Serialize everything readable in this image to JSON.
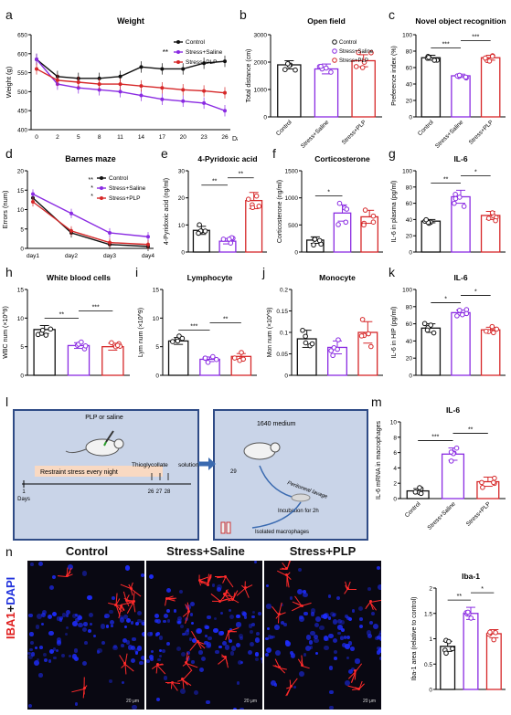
{
  "figure": {
    "panel_labels": [
      "a",
      "b",
      "c",
      "d",
      "e",
      "f",
      "g",
      "h",
      "i",
      "j",
      "k",
      "l",
      "m",
      "n"
    ]
  },
  "schematic": {
    "plp_label": "PLP or saline",
    "stress_label": "Restraint stress every night",
    "thio_label": "Thioglycollate",
    "solution_label": "solution",
    "days": [
      "1",
      "26",
      "27",
      "28"
    ],
    "days_label": "Days",
    "medium_label": "1640 medium",
    "day29": "29",
    "lavage": "Peritoneal lavage",
    "incubation": "Incubation for 2h",
    "isolated": "Isolated macrophages"
  },
  "images": {
    "titles": [
      "Control",
      "Stress+Saline",
      "Stress+PLP"
    ],
    "side_label_1": "IBA1",
    "side_label_2": "+",
    "side_label_3": "DAPI",
    "scalebar": "20 μm"
  },
  "chart_data": [
    {
      "id": "a",
      "type": "line",
      "title": "Weight",
      "xlabel": "Days",
      "ylabel": "Weight (g)",
      "x": [
        0,
        2,
        5,
        8,
        11,
        14,
        17,
        20,
        23,
        26
      ],
      "ylim": [
        400,
        650
      ],
      "yticks": [
        400,
        450,
        500,
        550,
        600,
        650
      ],
      "series": [
        {
          "name": "Control",
          "color": "#111111",
          "values": [
            585,
            540,
            535,
            535,
            540,
            565,
            560,
            560,
            575,
            580
          ]
        },
        {
          "name": "Stress+Saline",
          "color": "#8a2be2",
          "values": [
            585,
            520,
            510,
            505,
            500,
            490,
            480,
            475,
            470,
            450
          ]
        },
        {
          "name": "Stress+PLP",
          "color": "#d62728",
          "values": [
            560,
            530,
            525,
            520,
            520,
            515,
            510,
            505,
            502,
            497
          ]
        }
      ],
      "annotation": "**"
    },
    {
      "id": "b",
      "type": "bar",
      "title": "Open field",
      "ylabel": "Total distance (cm)",
      "categories": [
        "Control",
        "Stress+Saline",
        "Stress+PLP"
      ],
      "values": [
        1900,
        1750,
        2050
      ],
      "errors": [
        150,
        180,
        220
      ],
      "ylim": [
        0,
        3000
      ],
      "yticks": [
        0,
        1000,
        2000,
        3000
      ],
      "colors": [
        "#111111",
        "#8a2be2",
        "#d62728"
      ],
      "legend": [
        "Control",
        "Stress+Saline",
        "Stress+PLP"
      ]
    },
    {
      "id": "c",
      "type": "bar",
      "title": "Novel object recognition",
      "ylabel": "Preference index (%)",
      "categories": [
        "Control",
        "Stress+Saline",
        "Stress+PLP"
      ],
      "values": [
        72,
        50,
        72
      ],
      "errors": [
        3,
        2,
        3
      ],
      "ylim": [
        0,
        100
      ],
      "yticks": [
        0,
        20,
        40,
        60,
        80,
        100
      ],
      "colors": [
        "#111111",
        "#8a2be2",
        "#d62728"
      ],
      "sig": [
        "***",
        "***"
      ]
    },
    {
      "id": "d",
      "type": "line",
      "title": "Barnes maze",
      "ylabel": "Errors (num)",
      "x": [
        "day1",
        "day2",
        "day3",
        "day4"
      ],
      "ylim": [
        0,
        20
      ],
      "yticks": [
        0,
        5,
        10,
        15,
        20
      ],
      "series": [
        {
          "name": "Control",
          "color": "#111111",
          "values": [
            13,
            4,
            1,
            0.5
          ]
        },
        {
          "name": "Stress+Saline",
          "color": "#8a2be2",
          "values": [
            14,
            9,
            4,
            3
          ]
        },
        {
          "name": "Stress+PLP",
          "color": "#d62728",
          "values": [
            12,
            4.5,
            1.5,
            1
          ]
        }
      ],
      "sig": [
        "**",
        "*",
        "*"
      ]
    },
    {
      "id": "e",
      "type": "bar",
      "title": "4-Pyridoxic acid",
      "ylabel": "4-Pyridoxic acid (ng/ml)",
      "values": [
        8,
        4,
        19
      ],
      "errors": [
        1.5,
        1,
        3
      ],
      "ylim": [
        0,
        30
      ],
      "yticks": [
        0,
        10,
        20,
        30
      ],
      "colors": [
        "#111111",
        "#8a2be2",
        "#d62728"
      ],
      "sig": [
        "**",
        "**"
      ]
    },
    {
      "id": "f",
      "type": "bar",
      "title": "Corticosterone",
      "ylabel": "Corticosterone (ng/ml)",
      "values": [
        220,
        720,
        650
      ],
      "errors": [
        60,
        150,
        120
      ],
      "ylim": [
        0,
        1500
      ],
      "yticks": [
        0,
        500,
        1000,
        1500
      ],
      "colors": [
        "#111111",
        "#8a2be2",
        "#d62728"
      ],
      "sig": [
        "*"
      ]
    },
    {
      "id": "g",
      "type": "bar",
      "title": "IL-6",
      "ylabel": "IL-6 in plasma (pg/ml)",
      "values": [
        38,
        68,
        45
      ],
      "errors": [
        2,
        8,
        5
      ],
      "ylim": [
        0,
        100
      ],
      "yticks": [
        0,
        20,
        40,
        60,
        80,
        100
      ],
      "colors": [
        "#111111",
        "#8a2be2",
        "#d62728"
      ],
      "sig": [
        "**",
        "*"
      ]
    },
    {
      "id": "h",
      "type": "bar",
      "title": "White blood cells",
      "ylabel": "WBC num (×10^9)",
      "values": [
        8,
        5.2,
        5
      ],
      "errors": [
        0.7,
        0.5,
        0.6
      ],
      "ylim": [
        0,
        15
      ],
      "yticks": [
        0,
        5,
        10,
        15
      ],
      "colors": [
        "#111111",
        "#8a2be2",
        "#d62728"
      ],
      "sig": [
        "**",
        "***"
      ]
    },
    {
      "id": "i",
      "type": "bar",
      "title": "Lymphocyte",
      "ylabel": "Lym num (×10^9)",
      "values": [
        6,
        2.8,
        3.3
      ],
      "errors": [
        0.6,
        0.4,
        0.5
      ],
      "ylim": [
        0,
        15
      ],
      "yticks": [
        0,
        5,
        10,
        15
      ],
      "colors": [
        "#111111",
        "#8a2be2",
        "#d62728"
      ],
      "sig": [
        "***",
        "**"
      ]
    },
    {
      "id": "j",
      "type": "bar",
      "title": "Monocyte",
      "ylabel": "Mon num (×10^9)",
      "values": [
        0.085,
        0.065,
        0.1
      ],
      "errors": [
        0.02,
        0.015,
        0.025
      ],
      "ylim": [
        0,
        0.2
      ],
      "yticks": [
        0,
        0.05,
        0.1,
        0.15,
        0.2
      ],
      "colors": [
        "#111111",
        "#8a2be2",
        "#d62728"
      ]
    },
    {
      "id": "k",
      "type": "bar",
      "title": "IL-6",
      "ylabel": "IL-6 in HIP (pg/ml)",
      "values": [
        55,
        73,
        53
      ],
      "errors": [
        5,
        3,
        3
      ],
      "ylim": [
        0,
        100
      ],
      "yticks": [
        0,
        20,
        40,
        60,
        80,
        100
      ],
      "colors": [
        "#111111",
        "#8a2be2",
        "#d62728"
      ],
      "sig": [
        "*",
        "*"
      ]
    },
    {
      "id": "m",
      "type": "bar",
      "title": "IL-6",
      "ylabel": "IL-6 mRNA in macrophages",
      "categories": [
        "Control",
        "Stress+Saline",
        "Stress+PLP"
      ],
      "values": [
        1,
        5.8,
        2.2
      ],
      "errors": [
        0.3,
        0.8,
        0.6
      ],
      "ylim": [
        0,
        10
      ],
      "yticks": [
        0,
        2,
        4,
        6,
        8,
        10
      ],
      "colors": [
        "#111111",
        "#8a2be2",
        "#d62728"
      ],
      "sig": [
        "***",
        "**"
      ]
    },
    {
      "id": "n2",
      "type": "bar",
      "title": "Iba-1",
      "ylabel": "Iba-1 area (relative to control)",
      "values": [
        0.85,
        1.5,
        1.1
      ],
      "errors": [
        0.1,
        0.12,
        0.08
      ],
      "ylim": [
        0,
        2.0
      ],
      "yticks": [
        0,
        0.5,
        1.0,
        1.5,
        2.0
      ],
      "colors": [
        "#111111",
        "#8a2be2",
        "#d62728"
      ],
      "sig": [
        "**",
        "*"
      ]
    }
  ]
}
